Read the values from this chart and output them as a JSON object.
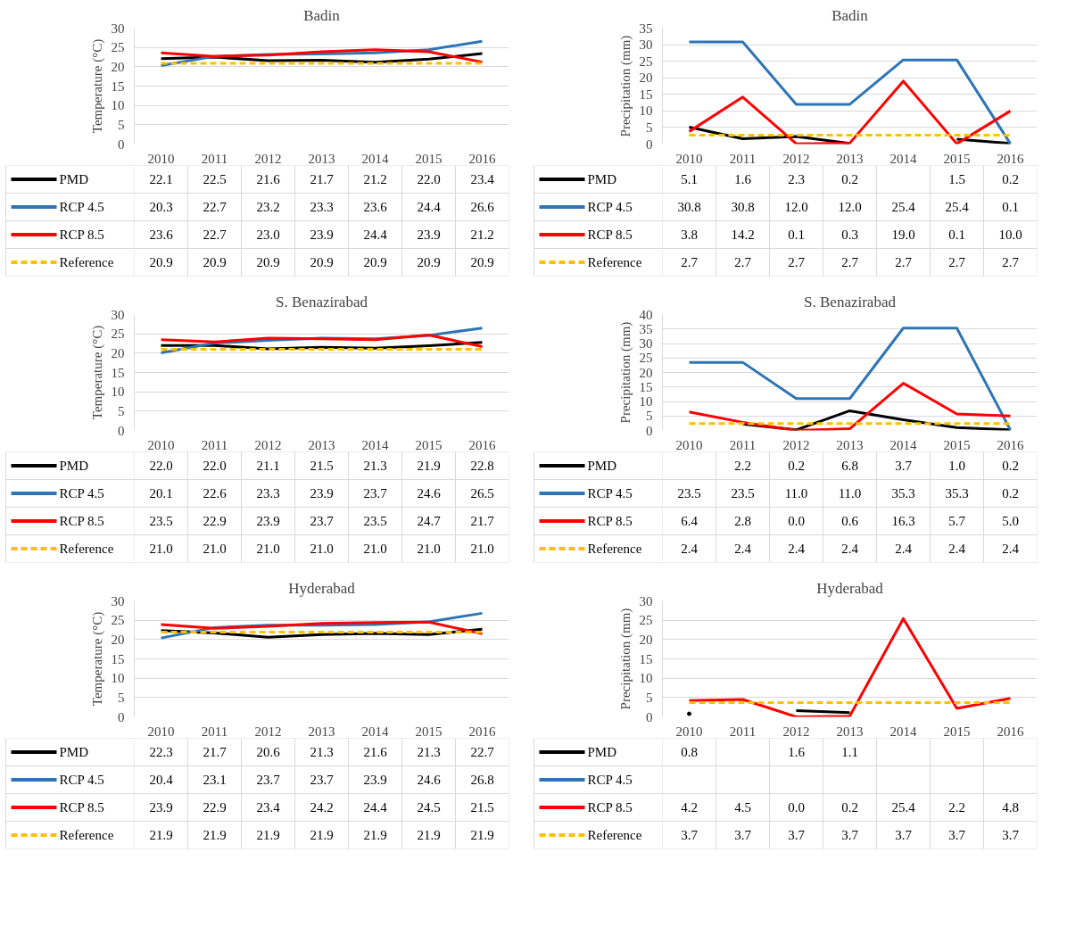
{
  "chart_data": [
    {
      "type": "line",
      "title": "Badin",
      "ylabel": "Temperature (°C)",
      "categories": [
        "2010",
        "2011",
        "2012",
        "2013",
        "2014",
        "2015",
        "2016"
      ],
      "ylim": [
        0,
        30
      ],
      "yticks": [
        0,
        5,
        10,
        15,
        20,
        25,
        30
      ],
      "grid": "y",
      "legend": "bottom",
      "series": [
        {
          "name": "PMD",
          "color": "#000000",
          "values": [
            22.1,
            22.5,
            21.6,
            21.7,
            21.2,
            22.0,
            23.4
          ],
          "value_labels": [
            "22.1",
            "22.5",
            "21.6",
            "21.7",
            "21.2",
            "22.0",
            "23.4"
          ]
        },
        {
          "name": "RCP 4.5",
          "color": "#2e75b6",
          "values": [
            20.3,
            22.7,
            23.2,
            23.3,
            23.6,
            24.4,
            26.6
          ],
          "value_labels": [
            "20.3",
            "22.7",
            "23.2",
            "23.3",
            "23.6",
            "24.4",
            "26.6"
          ]
        },
        {
          "name": "RCP 8.5",
          "color": "#ff0000",
          "values": [
            23.6,
            22.7,
            23.0,
            23.9,
            24.4,
            23.9,
            21.2
          ],
          "value_labels": [
            "23.6",
            "22.7",
            "23.0",
            "23.9",
            "24.4",
            "23.9",
            "21.2"
          ]
        },
        {
          "name": "Reference",
          "color": "#ffc000",
          "line_style": "dashed",
          "values": [
            20.9,
            20.9,
            20.9,
            20.9,
            20.9,
            20.9,
            20.9
          ],
          "value_labels": [
            "20.9",
            "20.9",
            "20.9",
            "20.9",
            "20.9",
            "20.9",
            "20.9"
          ]
        }
      ]
    },
    {
      "type": "line",
      "title": "Badin",
      "ylabel": "Precipitation (mm)",
      "categories": [
        "2010",
        "2011",
        "2012",
        "2013",
        "2014",
        "2015",
        "2016"
      ],
      "ylim": [
        0,
        35
      ],
      "yticks": [
        0,
        5,
        10,
        15,
        20,
        25,
        30,
        35
      ],
      "grid": "y",
      "legend": "bottom",
      "series": [
        {
          "name": "PMD",
          "color": "#000000",
          "values": [
            5.1,
            1.6,
            2.3,
            0.2,
            null,
            1.5,
            0.2
          ],
          "value_labels": [
            "5.1",
            "1.6",
            "2.3",
            "0.2",
            null,
            "1.5",
            "0.2"
          ]
        },
        {
          "name": "RCP 4.5",
          "color": "#2e75b6",
          "values": [
            30.8,
            30.8,
            12.0,
            12.0,
            25.4,
            25.4,
            0.1
          ],
          "value_labels": [
            "30.8",
            "30.8",
            "12.0",
            "12.0",
            "25.4",
            "25.4",
            "0.1"
          ]
        },
        {
          "name": "RCP 8.5",
          "color": "#ff0000",
          "values": [
            3.8,
            14.2,
            0.1,
            0.3,
            19.0,
            0.1,
            10.0
          ],
          "value_labels": [
            "3.8",
            "14.2",
            "0.1",
            "0.3",
            "19.0",
            "0.1",
            "10.0"
          ]
        },
        {
          "name": "Reference",
          "color": "#ffc000",
          "line_style": "dashed",
          "values": [
            2.7,
            2.7,
            2.7,
            2.7,
            2.7,
            2.7,
            2.7
          ],
          "value_labels": [
            "2.7",
            "2.7",
            "2.7",
            "2.7",
            "2.7",
            "2.7",
            "2.7"
          ]
        }
      ]
    },
    {
      "type": "line",
      "title": "S. Benazirabad",
      "ylabel": "Temperature (°C)",
      "categories": [
        "2010",
        "2011",
        "2012",
        "2013",
        "2014",
        "2015",
        "2016"
      ],
      "ylim": [
        0,
        30
      ],
      "yticks": [
        0,
        5,
        10,
        15,
        20,
        25,
        30
      ],
      "grid": "y",
      "legend": "bottom",
      "series": [
        {
          "name": "PMD",
          "color": "#000000",
          "values": [
            22.0,
            22.0,
            21.1,
            21.5,
            21.3,
            21.9,
            22.8
          ],
          "value_labels": [
            "22.0",
            "22.0",
            "21.1",
            "21.5",
            "21.3",
            "21.9",
            "22.8"
          ]
        },
        {
          "name": "RCP 4.5",
          "color": "#2e75b6",
          "values": [
            20.1,
            22.6,
            23.3,
            23.9,
            23.7,
            24.6,
            26.5
          ],
          "value_labels": [
            "20.1",
            "22.6",
            "23.3",
            "23.9",
            "23.7",
            "24.6",
            "26.5"
          ]
        },
        {
          "name": "RCP 8.5",
          "color": "#ff0000",
          "values": [
            23.5,
            22.9,
            23.9,
            23.7,
            23.5,
            24.7,
            21.7
          ],
          "value_labels": [
            "23.5",
            "22.9",
            "23.9",
            "23.7",
            "23.5",
            "24.7",
            "21.7"
          ]
        },
        {
          "name": "Reference",
          "color": "#ffc000",
          "line_style": "dashed",
          "values": [
            21.0,
            21.0,
            21.0,
            21.0,
            21.0,
            21.0,
            21.0
          ],
          "value_labels": [
            "21.0",
            "21.0",
            "21.0",
            "21.0",
            "21.0",
            "21.0",
            "21.0"
          ]
        }
      ]
    },
    {
      "type": "line",
      "title": "S. Benazirabad",
      "ylabel": "Precipitation (mm)",
      "categories": [
        "2010",
        "2011",
        "2012",
        "2013",
        "2014",
        "2015",
        "2016"
      ],
      "ylim": [
        0,
        40
      ],
      "yticks": [
        0,
        5,
        10,
        15,
        20,
        25,
        30,
        35,
        40
      ],
      "grid": "y",
      "legend": "bottom",
      "series": [
        {
          "name": "PMD",
          "color": "#000000",
          "values": [
            null,
            2.2,
            0.2,
            6.8,
            3.7,
            1.0,
            0.2
          ],
          "value_labels": [
            null,
            "2.2",
            "0.2",
            "6.8",
            "3.7",
            "1.0",
            "0.2"
          ]
        },
        {
          "name": "RCP 4.5",
          "color": "#2e75b6",
          "values": [
            23.5,
            23.5,
            11.0,
            11.0,
            35.3,
            35.3,
            0.2
          ],
          "value_labels": [
            "23.5",
            "23.5",
            "11.0",
            "11.0",
            "35.3",
            "35.3",
            "0.2"
          ]
        },
        {
          "name": "RCP 8.5",
          "color": "#ff0000",
          "values": [
            6.4,
            2.8,
            0.0,
            0.6,
            16.3,
            5.7,
            5.0
          ],
          "value_labels": [
            "6.4",
            "2.8",
            "0.0",
            "0.6",
            "16.3",
            "5.7",
            "5.0"
          ]
        },
        {
          "name": "Reference",
          "color": "#ffc000",
          "line_style": "dashed",
          "values": [
            2.4,
            2.4,
            2.4,
            2.4,
            2.4,
            2.4,
            2.4
          ],
          "value_labels": [
            "2.4",
            "2.4",
            "2.4",
            "2.4",
            "2.4",
            "2.4",
            "2.4"
          ]
        }
      ]
    },
    {
      "type": "line",
      "title": "Hyderabad",
      "ylabel": "Temperature (°C)",
      "categories": [
        "2010",
        "2011",
        "2012",
        "2013",
        "2014",
        "2015",
        "2016"
      ],
      "ylim": [
        0,
        30
      ],
      "yticks": [
        0,
        5,
        10,
        15,
        20,
        25,
        30
      ],
      "grid": "y",
      "legend": "bottom",
      "series": [
        {
          "name": "PMD",
          "color": "#000000",
          "values": [
            22.3,
            21.7,
            20.6,
            21.3,
            21.6,
            21.3,
            22.7
          ],
          "value_labels": [
            "22.3",
            "21.7",
            "20.6",
            "21.3",
            "21.6",
            "21.3",
            "22.7"
          ]
        },
        {
          "name": "RCP 4.5",
          "color": "#2e75b6",
          "values": [
            20.4,
            23.1,
            23.7,
            23.7,
            23.9,
            24.6,
            26.8
          ],
          "value_labels": [
            "20.4",
            "23.1",
            "23.7",
            "23.7",
            "23.9",
            "24.6",
            "26.8"
          ]
        },
        {
          "name": "RCP 8.5",
          "color": "#ff0000",
          "values": [
            23.9,
            22.9,
            23.4,
            24.2,
            24.4,
            24.5,
            21.5
          ],
          "value_labels": [
            "23.9",
            "22.9",
            "23.4",
            "24.2",
            "24.4",
            "24.5",
            "21.5"
          ]
        },
        {
          "name": "Reference",
          "color": "#ffc000",
          "line_style": "dashed",
          "values": [
            21.9,
            21.9,
            21.9,
            21.9,
            21.9,
            21.9,
            21.9
          ],
          "value_labels": [
            "21.9",
            "21.9",
            "21.9",
            "21.9",
            "21.9",
            "21.9",
            "21.9"
          ]
        }
      ]
    },
    {
      "type": "line",
      "title": "Hyderabad",
      "ylabel": "Precipitation (mm)",
      "categories": [
        "2010",
        "2011",
        "2012",
        "2013",
        "2014",
        "2015",
        "2016"
      ],
      "ylim": [
        0,
        30
      ],
      "yticks": [
        0,
        5,
        10,
        15,
        20,
        25,
        30
      ],
      "grid": "y",
      "legend": "bottom",
      "series": [
        {
          "name": "PMD",
          "color": "#000000",
          "values": [
            0.8,
            null,
            1.6,
            1.1,
            null,
            null,
            null
          ],
          "value_labels": [
            "0.8",
            null,
            "1.6",
            "1.1",
            null,
            null,
            null
          ]
        },
        {
          "name": "RCP 4.5",
          "color": "#2e75b6",
          "values": [
            null,
            null,
            null,
            null,
            null,
            null,
            null
          ]
        },
        {
          "name": "RCP 8.5",
          "color": "#ff0000",
          "values": [
            4.2,
            4.5,
            0.0,
            0.2,
            25.4,
            2.2,
            4.8
          ],
          "value_labels": [
            "4.2",
            "4.5",
            "0.0",
            "0.2",
            "25.4",
            "2.2",
            "4.8"
          ]
        },
        {
          "name": "Reference",
          "color": "#ffc000",
          "line_style": "dashed",
          "values": [
            3.7,
            3.7,
            3.7,
            3.7,
            3.7,
            3.7,
            3.7
          ],
          "value_labels": [
            "3.7",
            "3.7",
            "3.7",
            "3.7",
            "3.7",
            "3.7",
            "3.7"
          ]
        }
      ]
    }
  ]
}
